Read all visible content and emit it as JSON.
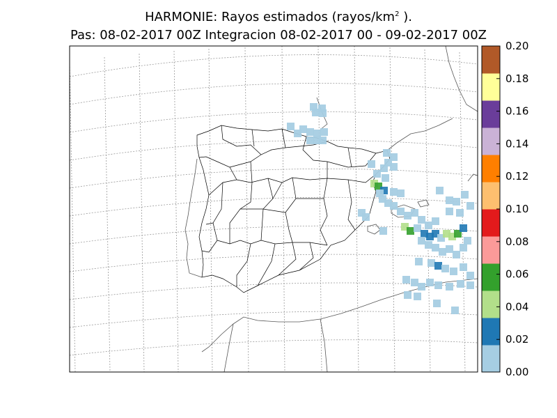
{
  "title": {
    "line1_prefix": "HARMONIE: Rayos estimados  (rayos/km",
    "line1_sup": "2",
    "line1_suffix": " ).",
    "line2": "Pas: 08-02-2017 00Z Integracion 08-02-2017 00 - 09-02-2017 00Z"
  },
  "colorbar": {
    "tick_labels": [
      "0.00",
      "0.02",
      "0.04",
      "0.06",
      "0.08",
      "0.10",
      "0.12",
      "0.14",
      "0.16",
      "0.18",
      "0.20"
    ],
    "min": 0.0,
    "max": 0.2,
    "colors": [
      "#a6cee3",
      "#1f78b4",
      "#b2df8a",
      "#33a02c",
      "#fb9a99",
      "#e31a1c",
      "#fdbf6f",
      "#ff7f00",
      "#cab2d6",
      "#6a3d9a",
      "#ffff99",
      "#b15928"
    ]
  },
  "map": {
    "region": "Iberian Peninsula",
    "graticule": "dotted",
    "colors": {
      "coast": "#555555",
      "borders": "#000000",
      "graticule": "#999999"
    }
  }
}
